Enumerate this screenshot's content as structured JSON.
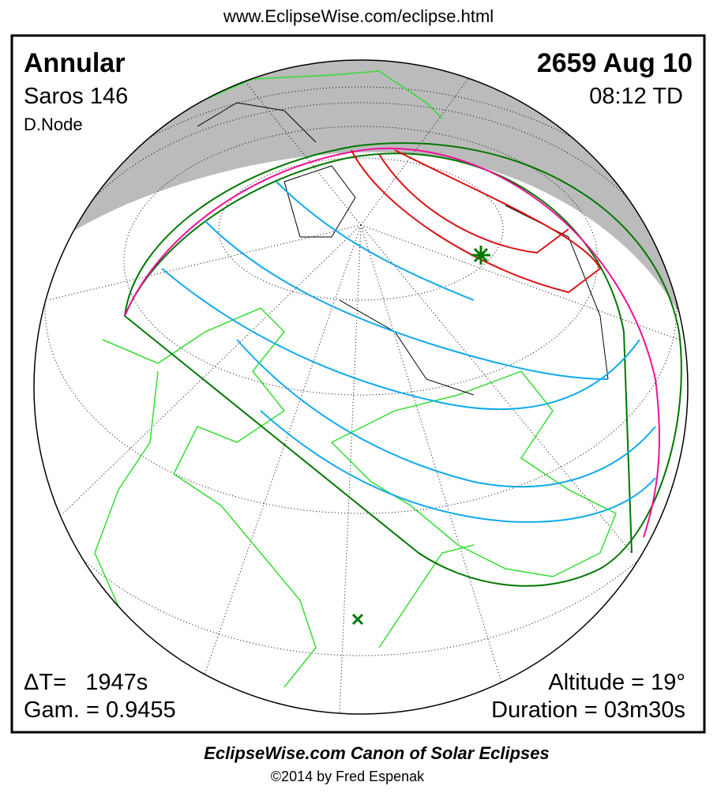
{
  "header": {
    "url": "www.EclipseWise.com/eclipse.html"
  },
  "panel": {
    "eclipse_type": "Annular",
    "saros": "Saros 146",
    "node": "D.Node",
    "date": "2659 Aug 10",
    "time": "08:12 TD",
    "delta_t": "ΔT=   1947s",
    "gamma": "Gam. = 0.9455",
    "altitude": "Altitude = 19°",
    "duration": "Duration = 03m30s"
  },
  "footer": {
    "title": "EclipseWise.com Canon of Solar Eclipses",
    "copyright": "©2014 by Fred Espenak"
  }
}
